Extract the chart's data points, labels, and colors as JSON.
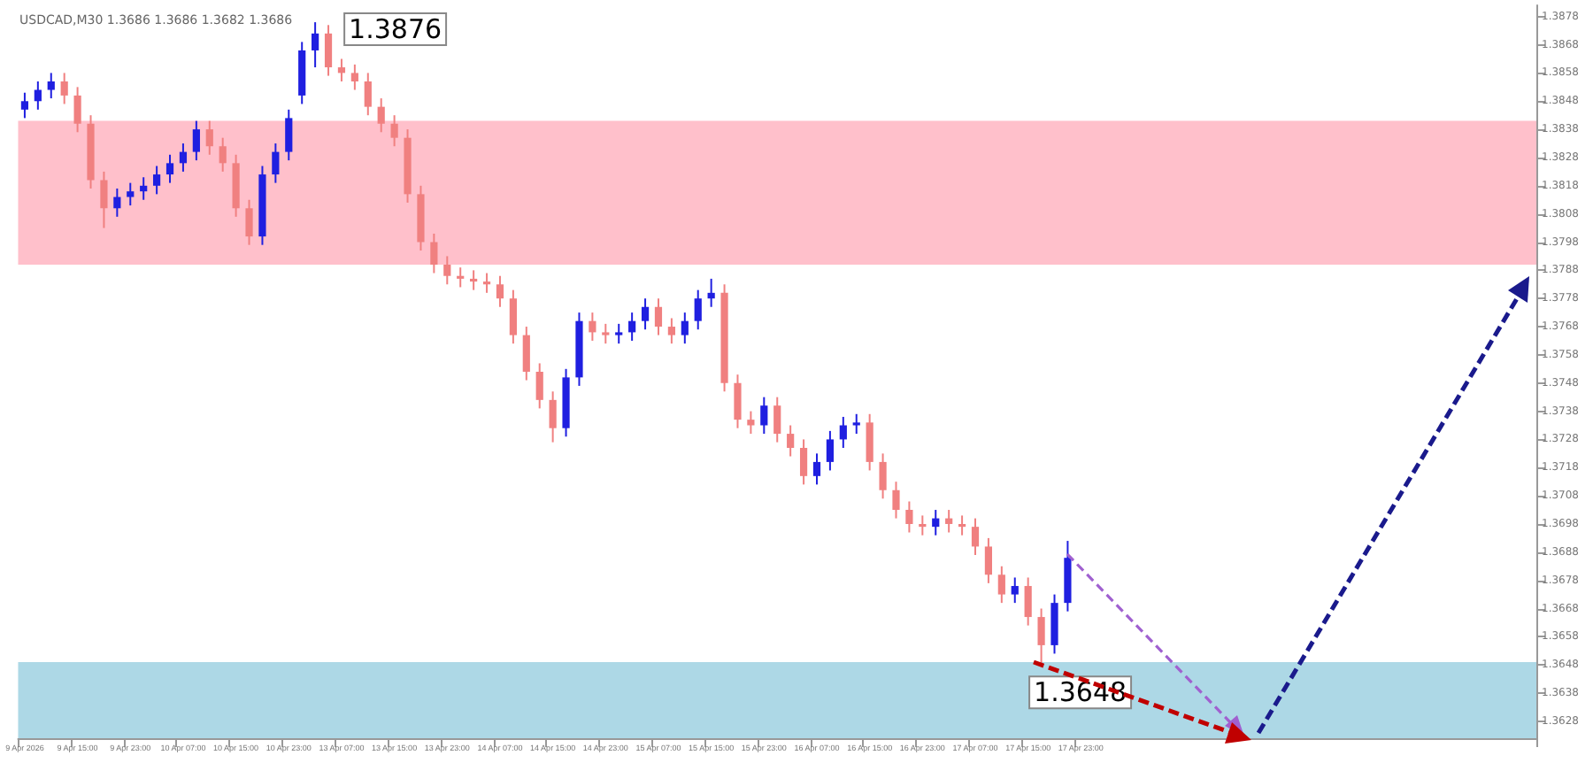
{
  "chart_data": {
    "type": "candlestick",
    "title": "USDCAD,M30 1.3686 1.3686 1.3682 1.3686",
    "categories": [
      "9 Apr 2026",
      null,
      null,
      null,
      "9 Apr 15:00",
      null,
      null,
      null,
      "9 Apr 23:00",
      null,
      null,
      null,
      "10 Apr 07:00",
      null,
      null,
      null,
      "10 Apr 15:00",
      null,
      null,
      null,
      "10 Apr 23:00",
      null,
      null,
      null,
      "13 Apr 07:00",
      null,
      null,
      null,
      "13 Apr 15:00",
      null,
      null,
      null,
      "13 Apr 23:00",
      null,
      null,
      null,
      "14 Apr 07:00",
      null,
      null,
      null,
      "14 Apr 15:00",
      null,
      null,
      null,
      "14 Apr 23:00",
      null,
      null,
      null,
      "15 Apr 07:00",
      null,
      null,
      null,
      "15 Apr 15:00",
      null,
      null,
      null,
      "15 Apr 23:00",
      null,
      null,
      null,
      "16 Apr 07:00",
      null,
      null,
      null,
      "16 Apr 15:00",
      null,
      null,
      null,
      "16 Apr 23:00",
      null,
      null,
      null,
      "17 Apr 07:00",
      null,
      null,
      null,
      "17 Apr 15:00",
      null,
      null,
      null,
      "17 Apr 23:00",
      null,
      null,
      null,
      null,
      null,
      null,
      null,
      null,
      null,
      null,
      null,
      null,
      null,
      null,
      null,
      null,
      null,
      null,
      null,
      null,
      null,
      null,
      null,
      null,
      null,
      null,
      null,
      null,
      null,
      null,
      null,
      null,
      null,
      null
    ],
    "ylim": [
      1.3622,
      1.3882
    ],
    "yticks": [
      1.3628,
      1.3638,
      1.3648,
      1.3658,
      1.3668,
      1.3678,
      1.3688,
      1.3698,
      1.3708,
      1.3718,
      1.3728,
      1.3738,
      1.3748,
      1.3758,
      1.3768,
      1.3778,
      1.3788,
      1.3798,
      1.3808,
      1.3818,
      1.3828,
      1.3838,
      1.3848,
      1.3858,
      1.3868,
      1.3878
    ],
    "bands": [
      {
        "axis": "y",
        "from": 1.379,
        "to": 1.3841,
        "color": "#ffc0cb"
      },
      {
        "axis": "y",
        "from": 1.3622,
        "to": 1.3649,
        "color": "#add8e6"
      }
    ],
    "annotations": [
      "1.3876",
      {
        "text": "1.3648",
        "y": 1.3648
      }
    ],
    "series": [
      {
        "ohlc": [
          [
            1.3845,
            1.3851,
            1.3842,
            1.3848
          ],
          [
            1.3848,
            1.3855,
            1.3845,
            1.3852
          ],
          [
            1.3852,
            1.3858,
            1.3849,
            1.3855
          ],
          [
            1.3855,
            1.3858,
            1.3847,
            1.385
          ],
          [
            1.385,
            1.3853,
            1.3837,
            1.384
          ],
          [
            1.384,
            1.3843,
            1.3817,
            1.382
          ],
          [
            1.382,
            1.3823,
            1.3803,
            1.381
          ],
          [
            1.381,
            1.3817,
            1.3807,
            1.3814
          ],
          [
            1.3814,
            1.3819,
            1.3811,
            1.3816
          ],
          [
            1.3816,
            1.3821,
            1.3813,
            1.3818
          ],
          [
            1.3818,
            1.3825,
            1.3815,
            1.3822
          ],
          [
            1.3822,
            1.3829,
            1.3819,
            1.3826
          ],
          [
            1.3826,
            1.3833,
            1.3823,
            1.383
          ],
          [
            1.383,
            1.3841,
            1.3827,
            1.3838
          ],
          [
            1.3838,
            1.3841,
            1.3829,
            1.3832
          ],
          [
            1.3832,
            1.3835,
            1.3823,
            1.3826
          ],
          [
            1.3826,
            1.3829,
            1.3807,
            1.381
          ],
          [
            1.381,
            1.3813,
            1.3797,
            1.38
          ],
          [
            1.38,
            1.3825,
            1.3797,
            1.3822
          ],
          [
            1.3822,
            1.3833,
            1.3819,
            1.383
          ],
          [
            1.383,
            1.3845,
            1.3827,
            1.3842
          ],
          [
            1.385,
            1.3869,
            1.3847,
            1.3866
          ],
          [
            1.3866,
            1.3876,
            1.386,
            1.3872
          ],
          [
            1.3872,
            1.3875,
            1.3857,
            1.386
          ],
          [
            1.386,
            1.3863,
            1.3855,
            1.3858
          ],
          [
            1.3858,
            1.3861,
            1.3852,
            1.3855
          ],
          [
            1.3855,
            1.3858,
            1.3843,
            1.3846
          ],
          [
            1.3846,
            1.3849,
            1.3837,
            1.384
          ],
          [
            1.384,
            1.3843,
            1.3832,
            1.3835
          ],
          [
            1.3835,
            1.3838,
            1.3812,
            1.3815
          ],
          [
            1.3815,
            1.3818,
            1.3795,
            1.3798
          ],
          [
            1.3798,
            1.3801,
            1.3787,
            1.379
          ],
          [
            1.379,
            1.3793,
            1.3783,
            1.3786
          ],
          [
            1.3786,
            1.3789,
            1.3782,
            1.3785
          ],
          [
            1.3785,
            1.3788,
            1.3781,
            1.3784
          ],
          [
            1.3784,
            1.3787,
            1.378,
            1.3783
          ],
          [
            1.3783,
            1.3786,
            1.3775,
            1.3778
          ],
          [
            1.3778,
            1.3781,
            1.3762,
            1.3765
          ],
          [
            1.3765,
            1.3768,
            1.3749,
            1.3752
          ],
          [
            1.3752,
            1.3755,
            1.3739,
            1.3742
          ],
          [
            1.3742,
            1.3745,
            1.3727,
            1.3732
          ],
          [
            1.3732,
            1.3753,
            1.3729,
            1.375
          ],
          [
            1.375,
            1.3773,
            1.3747,
            1.377
          ],
          [
            1.377,
            1.3773,
            1.3763,
            1.3766
          ],
          [
            1.3766,
            1.3769,
            1.3762,
            1.3765
          ],
          [
            1.3765,
            1.3769,
            1.3762,
            1.3766
          ],
          [
            1.3766,
            1.3773,
            1.3763,
            1.377
          ],
          [
            1.377,
            1.3778,
            1.3767,
            1.3775
          ],
          [
            1.3775,
            1.3778,
            1.3765,
            1.3768
          ],
          [
            1.3768,
            1.3771,
            1.3762,
            1.3765
          ],
          [
            1.3765,
            1.3773,
            1.3762,
            1.377
          ],
          [
            1.377,
            1.3781,
            1.3767,
            1.3778
          ],
          [
            1.3778,
            1.3785,
            1.3775,
            1.378
          ],
          [
            1.378,
            1.3783,
            1.3745,
            1.3748
          ],
          [
            1.3748,
            1.3751,
            1.3732,
            1.3735
          ],
          [
            1.3735,
            1.3738,
            1.373,
            1.3733
          ],
          [
            1.3733,
            1.3743,
            1.373,
            1.374
          ],
          [
            1.374,
            1.3743,
            1.3727,
            1.373
          ],
          [
            1.373,
            1.3733,
            1.3722,
            1.3725
          ],
          [
            1.3725,
            1.3728,
            1.3712,
            1.3715
          ],
          [
            1.3715,
            1.3723,
            1.3712,
            1.372
          ],
          [
            1.372,
            1.3731,
            1.3717,
            1.3728
          ],
          [
            1.3728,
            1.3736,
            1.3725,
            1.3733
          ],
          [
            1.3733,
            1.3737,
            1.373,
            1.3734
          ],
          [
            1.3734,
            1.3737,
            1.3717,
            1.372
          ],
          [
            1.372,
            1.3723,
            1.3707,
            1.371
          ],
          [
            1.371,
            1.3713,
            1.37,
            1.3703
          ],
          [
            1.3703,
            1.3706,
            1.3695,
            1.3698
          ],
          [
            1.3698,
            1.3701,
            1.3694,
            1.3697
          ],
          [
            1.3697,
            1.3703,
            1.3694,
            1.37
          ],
          [
            1.37,
            1.3703,
            1.3695,
            1.3698
          ],
          [
            1.3698,
            1.3701,
            1.3694,
            1.3697
          ],
          [
            1.3697,
            1.37,
            1.3687,
            1.369
          ],
          [
            1.369,
            1.3693,
            1.3677,
            1.368
          ],
          [
            1.368,
            1.3683,
            1.367,
            1.3673
          ],
          [
            1.3673,
            1.3679,
            1.367,
            1.3676
          ],
          [
            1.3676,
            1.3679,
            1.3662,
            1.3665
          ],
          [
            1.3665,
            1.3668,
            1.3648,
            1.3655
          ],
          [
            1.3655,
            1.3673,
            1.3652,
            1.367
          ],
          [
            1.367,
            1.3692,
            1.3667,
            1.3686
          ],
          null,
          null,
          null,
          null,
          null,
          null,
          null,
          null,
          null,
          null,
          null,
          null,
          null,
          null,
          null,
          null,
          null,
          null,
          null,
          null,
          null,
          null,
          null,
          null,
          null,
          null,
          null,
          null,
          null,
          null,
          null,
          null,
          null,
          null,
          null
        ],
        "colors": [
          "#1f1fe0",
          "#1f1fe0",
          "#1f1fe0",
          "#f08080",
          "#f08080",
          "#f08080",
          "#f08080",
          "#1f1fe0",
          "#1f1fe0",
          "#1f1fe0",
          "#1f1fe0",
          "#1f1fe0",
          "#1f1fe0",
          "#1f1fe0",
          "#f08080",
          "#f08080",
          "#f08080",
          "#f08080",
          "#1f1fe0",
          "#1f1fe0",
          "#1f1fe0",
          "#1f1fe0",
          "#1f1fe0",
          "#f08080",
          "#f08080",
          "#f08080",
          "#f08080",
          "#f08080",
          "#f08080",
          "#f08080",
          "#f08080",
          "#f08080",
          "#f08080",
          "#f08080",
          "#f08080",
          "#f08080",
          "#f08080",
          "#f08080",
          "#f08080",
          "#f08080",
          "#f08080",
          "#1f1fe0",
          "#1f1fe0",
          "#f08080",
          "#f08080",
          "#1f1fe0",
          "#1f1fe0",
          "#1f1fe0",
          "#f08080",
          "#f08080",
          "#1f1fe0",
          "#1f1fe0",
          "#1f1fe0",
          "#f08080",
          "#f08080",
          "#f08080",
          "#1f1fe0",
          "#f08080",
          "#f08080",
          "#f08080",
          "#1f1fe0",
          "#1f1fe0",
          "#1f1fe0",
          "#1f1fe0",
          "#f08080",
          "#f08080",
          "#f08080",
          "#f08080",
          "#f08080",
          "#1f1fe0",
          "#f08080",
          "#f08080",
          "#f08080",
          "#f08080",
          "#f08080",
          "#1f1fe0",
          "#f08080",
          "#f08080",
          "#1f1fe0",
          "#1f1fe0",
          null,
          null,
          null,
          null,
          null,
          null,
          null,
          null,
          null,
          null,
          null,
          null,
          null,
          null,
          null,
          null,
          null,
          null,
          null,
          null,
          null,
          null,
          null,
          null,
          null,
          null,
          null,
          null,
          null,
          null,
          null,
          null,
          null,
          null,
          null
        ]
      }
    ]
  }
}
